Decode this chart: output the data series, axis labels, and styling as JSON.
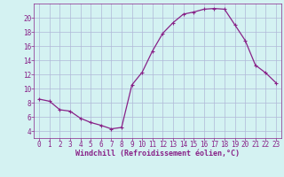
{
  "x": [
    0,
    1,
    2,
    3,
    4,
    5,
    6,
    7,
    8,
    9,
    10,
    11,
    12,
    13,
    14,
    15,
    16,
    17,
    18,
    19,
    20,
    21,
    22,
    23
  ],
  "y": [
    8.5,
    8.2,
    7.0,
    6.8,
    5.8,
    5.2,
    4.8,
    4.3,
    4.5,
    10.5,
    12.3,
    15.3,
    17.8,
    19.3,
    20.5,
    20.8,
    21.2,
    21.3,
    21.2,
    19.0,
    16.8,
    13.3,
    12.2,
    10.8
  ],
  "line_color": "#882288",
  "marker": "+",
  "bg_color": "#d4f2f2",
  "grid_color": "#b0b8d8",
  "xlabel": "Windchill (Refroidissement éolien,°C)",
  "xlabel_color": "#882288",
  "tick_color": "#882288",
  "ylim": [
    3,
    22
  ],
  "xlim": [
    -0.5,
    23.5
  ],
  "yticks": [
    4,
    6,
    8,
    10,
    12,
    14,
    16,
    18,
    20
  ],
  "xticks": [
    0,
    1,
    2,
    3,
    4,
    5,
    6,
    7,
    8,
    9,
    10,
    11,
    12,
    13,
    14,
    15,
    16,
    17,
    18,
    19,
    20,
    21,
    22,
    23
  ],
  "tick_fontsize": 5.5,
  "xlabel_fontsize": 6.0,
  "marker_size": 3.0,
  "line_width": 0.9
}
